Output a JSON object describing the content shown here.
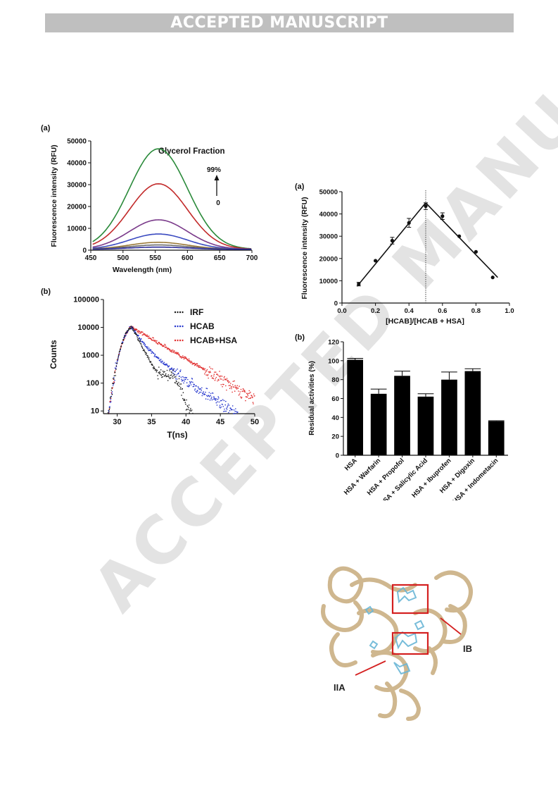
{
  "header": {
    "banner": "ACCEPTED MANUSCRIPT"
  },
  "watermark": "ACCEPTED MANUSCRIPT",
  "figure_left_a": {
    "panel_label": "(a)",
    "annotation": "Glycerol Fraction",
    "arrow_top_label": "99%",
    "arrow_bottom_label": "0",
    "colors": {
      "curves": [
        "#2a8a3a",
        "#c22a2a",
        "#7a3a8a",
        "#3a4ac0",
        "#9a7a3a",
        "#6a6a6a",
        "#2a2a9a"
      ]
    }
  },
  "figure_left_b": {
    "panel_label": "(b)"
  },
  "figure_right_a": {
    "panel_label": "(a)"
  },
  "figure_right_b": {
    "panel_label": "(b)"
  },
  "figure_structure": {
    "label_ib": "IB",
    "label_iia": "IIA"
  },
  "chart_data": [
    {
      "type": "line",
      "xlabel": "Wavelength (nm)",
      "ylabel": "Fluorescence intensity (RFU)",
      "xlim": [
        450,
        700
      ],
      "ylim": [
        0,
        50000
      ],
      "xticks": [
        "450",
        "500",
        "550",
        "600",
        "650",
        "700"
      ],
      "yticks": [
        "0",
        "10000",
        "20000",
        "30000",
        "40000",
        "50000"
      ],
      "series": [
        {
          "peak_x": 555,
          "peak_y": 46000
        },
        {
          "peak_x": 555,
          "peak_y": 30000
        },
        {
          "peak_x": 555,
          "peak_y": 13500
        },
        {
          "peak_x": 555,
          "peak_y": 7000
        },
        {
          "peak_x": 555,
          "peak_y": 3200
        },
        {
          "peak_x": 555,
          "peak_y": 2000
        },
        {
          "peak_x": 555,
          "peak_y": 1000
        }
      ]
    },
    {
      "type": "scatter",
      "xlabel": "T(ns)",
      "ylabel": "Counts",
      "xlim": [
        28,
        50
      ],
      "ylim": [
        8,
        100000
      ],
      "yscale": "log",
      "xticks": [
        "30",
        "35",
        "40",
        "45",
        "50"
      ],
      "yticks": [
        "10",
        "100",
        "1000",
        "10000",
        "100000"
      ],
      "legend_position": "top-right",
      "series": [
        {
          "name": "IRF",
          "color": "#1a1a1a"
        },
        {
          "name": "HCAB",
          "color": "#2233cc"
        },
        {
          "name": "HCAB+HSA",
          "color": "#e02a2a"
        }
      ]
    },
    {
      "type": "scatter",
      "xlabel": "[HCAB]/[HCAB + HSA]",
      "ylabel": "Fluorescence intensity (RFU)",
      "xlim": [
        0.0,
        1.0
      ],
      "ylim": [
        0,
        50000
      ],
      "xticks": [
        "0.0",
        "0.2",
        "0.4",
        "0.6",
        "0.8",
        "1.0"
      ],
      "yticks": [
        "0",
        "10000",
        "20000",
        "30000",
        "40000",
        "50000"
      ],
      "x": [
        0.1,
        0.2,
        0.3,
        0.4,
        0.5,
        0.6,
        0.7,
        0.8,
        0.9
      ],
      "y": [
        8500,
        19000,
        28000,
        36000,
        43500,
        39000,
        30000,
        23000,
        11500
      ],
      "err": [
        800,
        0,
        1500,
        2000,
        1500,
        1500,
        0,
        0,
        0
      ]
    },
    {
      "type": "bar",
      "ylabel": "Residual activities (%)",
      "ylim": [
        0,
        120
      ],
      "yticks": [
        "0",
        "20",
        "40",
        "60",
        "80",
        "100",
        "120"
      ],
      "categories": [
        "HSA",
        "HSA + Warfarin",
        "HSA + Propofol",
        "HSA + Salicylic Acid",
        "HSA + Ibuprofen",
        "HSA + Digoxin",
        "HSA + Indometacin"
      ],
      "values": [
        101,
        65,
        84,
        62,
        80,
        89,
        36
      ],
      "err": [
        1.5,
        5,
        5,
        3,
        8,
        2.5,
        0.5
      ]
    }
  ]
}
